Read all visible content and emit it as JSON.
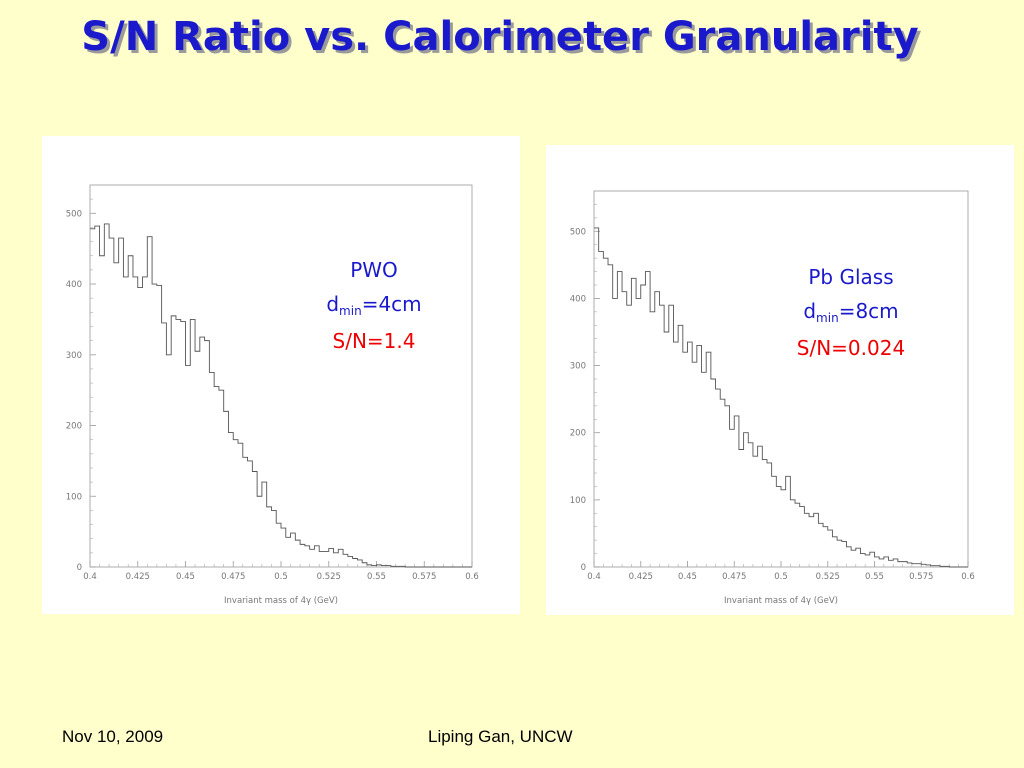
{
  "title": "S/N Ratio vs. Calorimeter Granularity",
  "footer": {
    "date": "Nov 10, 2009",
    "author": "Liping Gan, UNCW"
  },
  "colors": {
    "title": "#1a1acc",
    "annotation_blue": "#1a1acc",
    "annotation_red": "#ee0000",
    "background": "#ffffcc"
  },
  "panels": [
    {
      "label_line1": "PWO",
      "d_prefix": "d",
      "d_sub": "min",
      "d_value": "=4cm",
      "sn": "S/N=1.4"
    },
    {
      "label_line1": "Pb Glass",
      "d_prefix": "d",
      "d_sub": "min",
      "d_value": "=8cm",
      "sn": "S/N=0.024"
    }
  ],
  "chart_data": [
    {
      "type": "line",
      "xlabel": "Invariant mass of 4γ (GeV)",
      "xlim": [
        0.4,
        0.6
      ],
      "ylim": [
        0,
        540
      ],
      "xticks": [
        "0.4",
        "0.425",
        "0.45",
        "0.475",
        "0.5",
        "0.525",
        "0.55",
        "0.575",
        "0.6"
      ],
      "yticks": [
        "0",
        "100",
        "200",
        "300",
        "400",
        "500"
      ],
      "bin_width": 0.0025,
      "series": [
        {
          "values": [
            478,
            482,
            440,
            485,
            465,
            430,
            465,
            410,
            440,
            410,
            395,
            410,
            467,
            400,
            398,
            345,
            300,
            355,
            350,
            347,
            285,
            350,
            305,
            325,
            320,
            275,
            255,
            250,
            220,
            190,
            180,
            175,
            155,
            150,
            135,
            100,
            120,
            85,
            80,
            62,
            55,
            42,
            48,
            38,
            32,
            30,
            25,
            30,
            22,
            22,
            26,
            20,
            25,
            18,
            15,
            12,
            10,
            6,
            3,
            2,
            3,
            2,
            2,
            1,
            1,
            1,
            0,
            0,
            0,
            0,
            0,
            0,
            0,
            0,
            0,
            0,
            0,
            0,
            0,
            0
          ]
        }
      ]
    },
    {
      "type": "line",
      "xlabel": "Invariant mass of 4γ (GeV)",
      "xlim": [
        0.4,
        0.6
      ],
      "ylim": [
        0,
        560
      ],
      "xticks": [
        "0.4",
        "0.425",
        "0.45",
        "0.475",
        "0.5",
        "0.525",
        "0.55",
        "0.575",
        "0.6"
      ],
      "yticks": [
        "0",
        "100",
        "200",
        "300",
        "400",
        "500"
      ],
      "bin_width": 0.0025,
      "series": [
        {
          "values": [
            505,
            470,
            460,
            450,
            400,
            440,
            410,
            390,
            430,
            400,
            420,
            440,
            380,
            410,
            390,
            350,
            390,
            335,
            360,
            320,
            335,
            305,
            330,
            290,
            320,
            280,
            265,
            250,
            240,
            205,
            225,
            175,
            200,
            185,
            165,
            180,
            160,
            155,
            135,
            120,
            115,
            135,
            100,
            95,
            90,
            80,
            75,
            80,
            65,
            60,
            55,
            45,
            40,
            38,
            30,
            25,
            28,
            20,
            18,
            22,
            15,
            12,
            15,
            10,
            12,
            8,
            8,
            6,
            5,
            5,
            4,
            3,
            2,
            2,
            1,
            1,
            0,
            0,
            0,
            0
          ]
        }
      ]
    }
  ]
}
